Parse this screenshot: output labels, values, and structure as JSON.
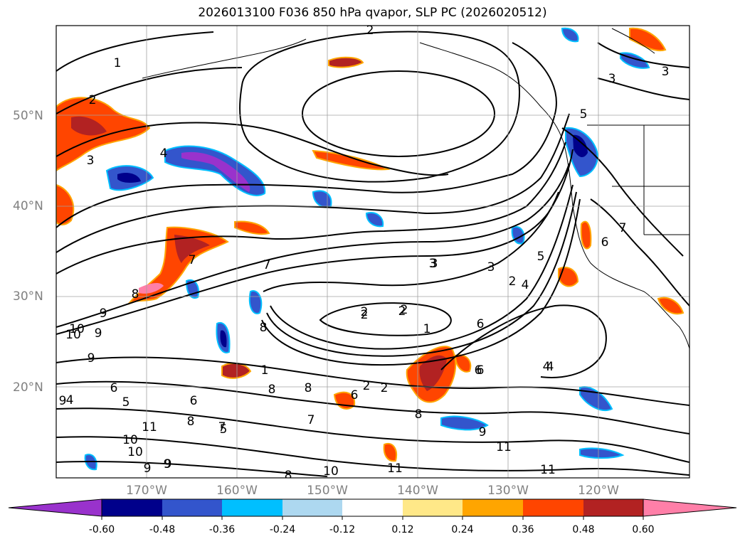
{
  "title": "2026013100 F036 850 hPa qvapor, SLP PC (2026020512)",
  "colors": {
    "frame": "#000000",
    "grid": "#a0a0a0",
    "coast": "#000000",
    "contour": "#000000",
    "tick_label": "#808080"
  },
  "lon_labels": [
    "170°W",
    "160°W",
    "150°W",
    "140°W",
    "130°W",
    "120°W"
  ],
  "lat_labels": [
    "50°N",
    "40°N",
    "30°N",
    "20°N"
  ],
  "colorbar": {
    "colors": [
      "#9932cc",
      "#00008b",
      "#3355cc",
      "#00bfff",
      "#add8f0",
      "#ffffff",
      "#ffe888",
      "#ffa500",
      "#ff4500",
      "#b22222",
      "#ff7fa8"
    ],
    "tick_labels": [
      "-0.60",
      "-0.48",
      "-0.36",
      "-0.24",
      "-0.12",
      "0.12",
      "0.24",
      "0.36",
      "0.48",
      "0.60"
    ]
  },
  "contour_labels": [
    "2",
    "1",
    "2",
    "3",
    "4",
    "3",
    "3",
    "5",
    "2",
    "2",
    "3",
    "7",
    "7",
    "8",
    "9",
    "10",
    "9",
    "3",
    "2",
    "2",
    "2",
    "1",
    "6",
    "8",
    "6",
    "9",
    "8",
    "5",
    "6",
    "7",
    "8",
    "10",
    "9",
    "10",
    "11",
    "9",
    "11",
    "11",
    "4",
    "5",
    "6",
    "7",
    "8",
    "9",
    "10",
    "11",
    "8",
    "9",
    "4",
    "6",
    "1",
    "2",
    "3",
    "4",
    "5",
    "6",
    "7",
    "8",
    "9",
    "10",
    "2",
    "4",
    "6"
  ]
}
